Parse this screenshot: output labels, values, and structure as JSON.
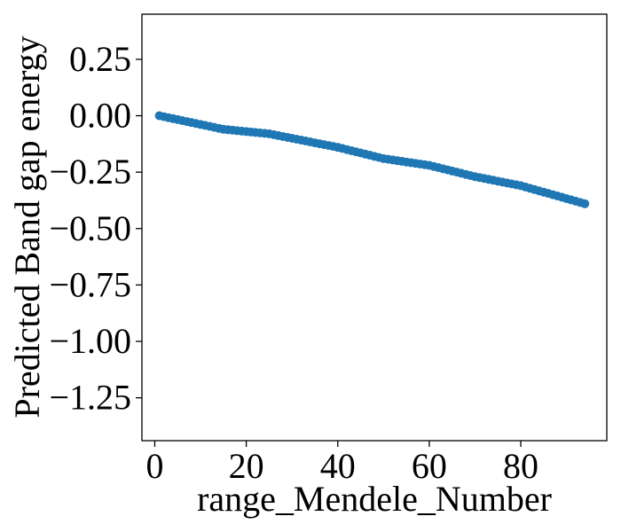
{
  "chart_data": {
    "type": "scatter",
    "title": "",
    "xlabel": "range_Mendele_Number",
    "ylabel": "Predicted Band gap energy",
    "xlim": [
      -2.8,
      98.8
    ],
    "ylim": [
      -1.44,
      0.45
    ],
    "xticks": [
      0,
      20,
      40,
      60,
      80
    ],
    "yticks": [
      0.25,
      0.0,
      -0.25,
      -0.5,
      -0.75,
      -1.0,
      -1.25
    ],
    "xtick_labels": [
      "0",
      "20",
      "40",
      "60",
      "80"
    ],
    "ytick_labels": [
      "0.25",
      "0.00",
      "−0.25",
      "−0.50",
      "−0.75",
      "−1.00",
      "−1.25"
    ],
    "grid": false,
    "marker_color": "#1f77b4",
    "series": [
      {
        "x_start": 1,
        "x_end": 94,
        "x_step": 1,
        "y_knots": [
          [
            1,
            0.0
          ],
          [
            15,
            -0.06
          ],
          [
            25,
            -0.08
          ],
          [
            40,
            -0.14
          ],
          [
            50,
            -0.19
          ],
          [
            60,
            -0.22
          ],
          [
            70,
            -0.27
          ],
          [
            80,
            -0.31
          ],
          [
            94,
            -0.39
          ]
        ]
      }
    ]
  }
}
